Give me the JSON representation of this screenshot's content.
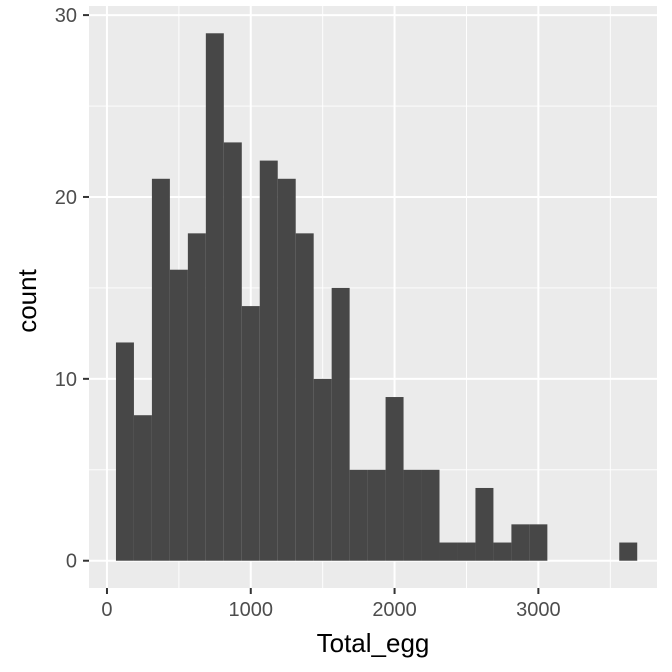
{
  "chart_data": {
    "type": "bar",
    "title": "",
    "xlabel": "Total_egg",
    "ylabel": "count",
    "xlim": [
      -125,
      3825
    ],
    "ylim": [
      -1.5,
      30.5
    ],
    "x_ticks": [
      0,
      1000,
      2000,
      3000
    ],
    "x_tick_labels": [
      "0",
      "1000",
      "2000",
      "3000"
    ],
    "y_ticks": [
      0,
      10,
      20,
      30
    ],
    "y_tick_labels": [
      "0",
      "10",
      "20",
      "30"
    ],
    "bin_width": 125,
    "bin_starts": [
      62.5,
      187.5,
      312.5,
      437.5,
      562.5,
      687.5,
      812.5,
      937.5,
      1062.5,
      1187.5,
      1312.5,
      1437.5,
      1562.5,
      1687.5,
      1812.5,
      1937.5,
      2062.5,
      2187.5,
      2312.5,
      2437.5,
      2562.5,
      2687.5,
      2812.5,
      2937.5,
      3062.5,
      3187.5,
      3312.5,
      3437.5,
      3562.5
    ],
    "counts": [
      12,
      8,
      21,
      16,
      18,
      29,
      23,
      14,
      22,
      21,
      18,
      10,
      15,
      5,
      5,
      9,
      5,
      5,
      1,
      1,
      4,
      1,
      2,
      2,
      0,
      0,
      0,
      0,
      1
    ],
    "grid": true,
    "colors": {
      "panel": "#EBEBEB",
      "grid_major": "#FFFFFF",
      "bar_fill": "#474747",
      "tick": "#333333"
    }
  }
}
